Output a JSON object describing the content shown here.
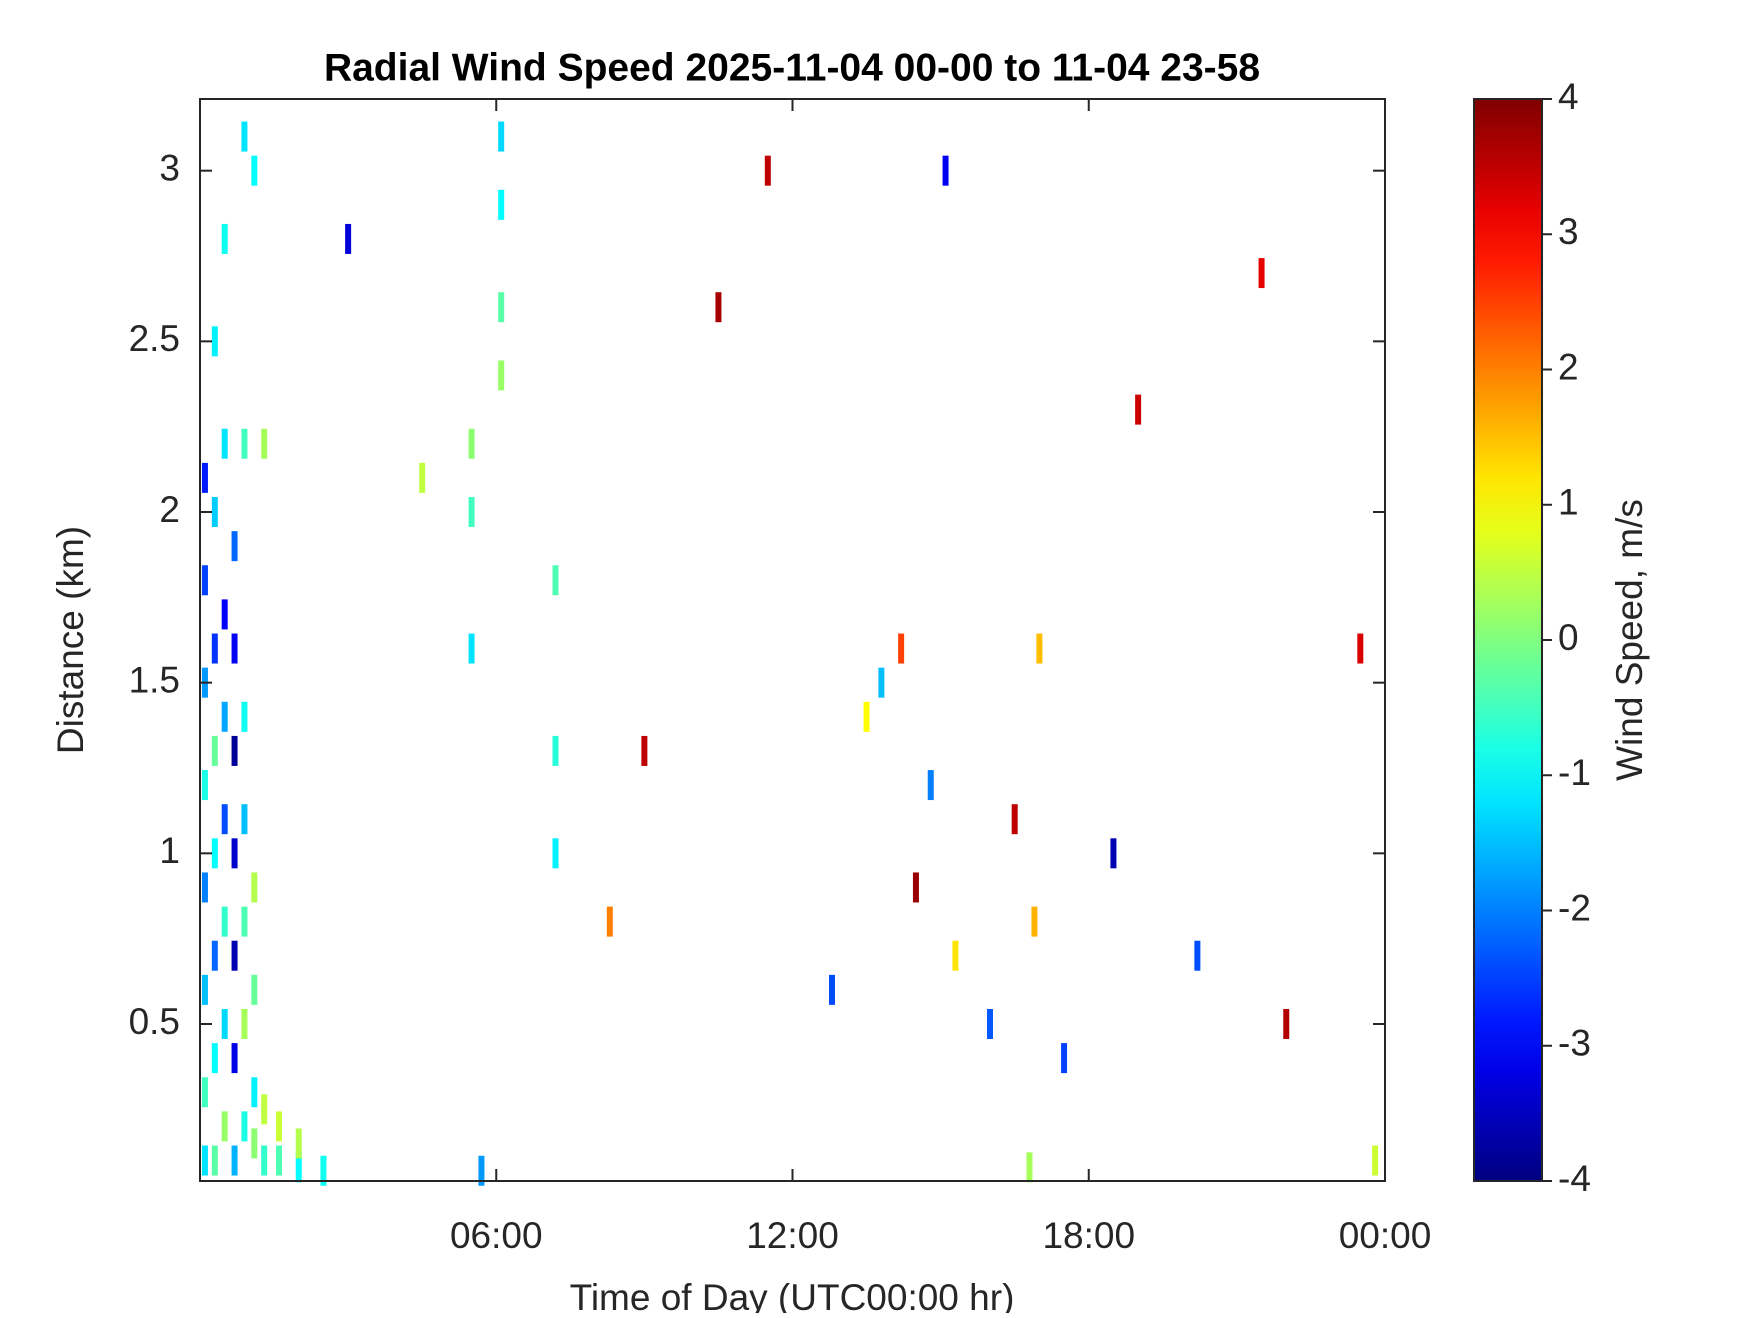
{
  "chart_data": {
    "type": "heatmap",
    "title": "Radial Wind Speed 2025-11-04 00-00 to 11-04 23-58",
    "xlabel": "Time of Day (UTC00:00 hr)",
    "ylabel": "Distance (km)",
    "colorbar_label": "Wind Speed, m/s",
    "colormap": "jet",
    "xlim": [
      0,
      24
    ],
    "xticks": [
      {
        "value": 6,
        "label": "06:00"
      },
      {
        "value": 12,
        "label": "12:00"
      },
      {
        "value": 18,
        "label": "18:00"
      },
      {
        "value": 24,
        "label": "00:00"
      }
    ],
    "ylim": [
      0.04,
      3.21
    ],
    "yticks": [
      0.5,
      1,
      1.5,
      2,
      2.5,
      3
    ],
    "clim": [
      -4,
      4
    ],
    "cticks": [
      -4,
      -3,
      -2,
      -1,
      0,
      1,
      2,
      3,
      4
    ],
    "x": [
      0.1,
      0.1,
      0.1,
      0.1,
      0.1,
      0.1,
      0.1,
      0.1,
      0.3,
      0.3,
      0.3,
      0.3,
      0.3,
      0.3,
      0.3,
      0.3,
      0.5,
      0.5,
      0.5,
      0.5,
      0.5,
      0.5,
      0.5,
      0.5,
      0.7,
      0.7,
      0.7,
      0.7,
      0.7,
      0.7,
      0.7,
      0.9,
      0.9,
      0.9,
      0.9,
      0.9,
      0.9,
      0.9,
      1.1,
      1.1,
      1.1,
      1.1,
      1.1,
      1.3,
      1.3,
      1.3,
      1.6,
      1.6,
      2.0,
      2.0,
      2.5,
      5.5,
      5.5,
      5.5,
      6.1,
      6.1,
      6.1,
      6.1,
      7.2,
      7.2,
      7.2,
      13.5,
      13.8,
      14.2,
      14.8,
      15.3,
      16.0,
      16.5,
      16.9,
      17.5,
      14.5,
      12.8,
      10.5,
      20.2,
      21.5,
      22.0,
      3.0,
      9.0,
      19.0,
      18.5,
      11.5,
      23.5,
      8.3,
      4.5,
      15.1,
      17.0,
      23.8,
      16.8,
      5.7
    ],
    "y": [
      0.1,
      0.3,
      0.6,
      0.9,
      1.2,
      1.5,
      1.8,
      2.1,
      0.1,
      0.4,
      0.7,
      1.0,
      1.3,
      1.6,
      2.0,
      2.5,
      0.2,
      0.5,
      0.8,
      1.1,
      1.4,
      1.7,
      2.2,
      2.8,
      0.1,
      0.4,
      0.7,
      1.0,
      1.3,
      1.6,
      1.9,
      0.2,
      0.5,
      0.8,
      1.1,
      1.4,
      2.2,
      3.1,
      0.15,
      0.3,
      0.6,
      0.9,
      3.0,
      0.1,
      0.25,
      2.2,
      0.1,
      0.2,
      0.08,
      0.15,
      0.07,
      2.2,
      2.0,
      1.6,
      2.6,
      2.9,
      3.1,
      2.4,
      1.8,
      1.3,
      1.0,
      1.4,
      1.5,
      1.6,
      1.2,
      0.7,
      0.5,
      1.1,
      0.8,
      0.4,
      0.9,
      0.6,
      2.6,
      0.7,
      2.7,
      0.5,
      2.8,
      1.3,
      2.3,
      1.0,
      3.0,
      1.6,
      0.8,
      2.1,
      3.0,
      1.6,
      0.1,
      0.08,
      0.07
    ],
    "values": [
      -1.2,
      -0.5,
      -1.5,
      -2.0,
      -0.8,
      -1.8,
      -2.5,
      -2.8,
      -0.3,
      -1.0,
      -2.2,
      -1.0,
      -0.2,
      -2.6,
      -1.4,
      -1.1,
      0.2,
      -1.3,
      -0.6,
      -2.4,
      -1.7,
      -3.0,
      -1.2,
      -0.9,
      -1.6,
      -3.2,
      -3.6,
      -3.4,
      -3.8,
      -3.1,
      -2.2,
      -0.8,
      0.3,
      -0.4,
      -1.5,
      -0.9,
      -0.5,
      -1.2,
      0.1,
      -1.1,
      -0.2,
      0.4,
      -1.0,
      -0.6,
      0.5,
      0.3,
      -0.4,
      0.6,
      -1.0,
      0.4,
      -0.9,
      0.1,
      -0.5,
      -1.2,
      -0.3,
      -1.0,
      -1.3,
      0.2,
      -0.4,
      -0.7,
      -1.1,
      1.0,
      -1.5,
      2.5,
      -2.0,
      1.2,
      -2.3,
      3.5,
      1.6,
      -2.5,
      3.8,
      -2.4,
      3.7,
      -2.4,
      3.2,
      3.6,
      -3.3,
      3.5,
      3.4,
      -3.6,
      3.5,
      3.3,
      2.0,
      0.5,
      -3.1,
      1.5,
      0.6,
      0.3,
      -1.8
    ]
  }
}
